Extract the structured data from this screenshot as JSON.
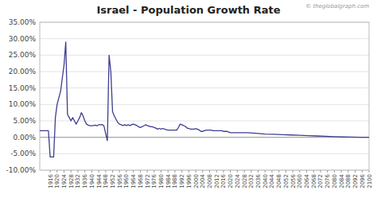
{
  "chart_data": {
    "type": "line",
    "title": "Israel - Population Growth Rate",
    "annotations": [
      "© theglobalgraph.com"
    ],
    "color": "#3d3d8f",
    "grid": true,
    "xlim": [
      1910,
      2100
    ],
    "xticks": [
      1916,
      1920,
      1924,
      1928,
      1932,
      1936,
      1940,
      1944,
      1948,
      1952,
      1956,
      1960,
      1964,
      1968,
      1972,
      1976,
      1980,
      1984,
      1988,
      1992,
      1996,
      2000,
      2004,
      2008,
      2012,
      2016,
      2020,
      2024,
      2028,
      2032,
      2036,
      2040,
      2044,
      2048,
      2052,
      2056,
      2060,
      2064,
      2068,
      2072,
      2076,
      2080,
      2084,
      2088,
      2092,
      2096,
      2100
    ],
    "ylim": [
      -0.1,
      0.35
    ],
    "yticks": [
      {
        "value": -0.1,
        "label": "-10.00%"
      },
      {
        "value": -0.05,
        "label": "-5.00%"
      },
      {
        "value": 0.0,
        "label": "0.00%"
      },
      {
        "value": 0.05,
        "label": "5.00%"
      },
      {
        "value": 0.1,
        "label": "10.00%"
      },
      {
        "value": 0.15,
        "label": "15.00%"
      },
      {
        "value": 0.2,
        "label": "20.00%"
      },
      {
        "value": 0.25,
        "label": "25.00%"
      },
      {
        "value": 0.3,
        "label": "30.00%"
      },
      {
        "value": 0.35,
        "label": "35.00%"
      }
    ],
    "x": [
      1910,
      1911,
      1912,
      1913,
      1914,
      1915,
      1916,
      1917,
      1918,
      1919,
      1920,
      1921,
      1922,
      1923,
      1924,
      1925,
      1926,
      1927,
      1928,
      1929,
      1930,
      1931,
      1932,
      1933,
      1934,
      1935,
      1936,
      1937,
      1938,
      1939,
      1940,
      1941,
      1942,
      1943,
      1944,
      1945,
      1946,
      1947,
      1948,
      1949,
      1950,
      1951,
      1952,
      1953,
      1954,
      1955,
      1956,
      1957,
      1958,
      1959,
      1960,
      1961,
      1962,
      1963,
      1964,
      1965,
      1966,
      1967,
      1968,
      1969,
      1970,
      1971,
      1972,
      1973,
      1974,
      1975,
      1976,
      1977,
      1978,
      1979,
      1980,
      1981,
      1982,
      1983,
      1984,
      1985,
      1986,
      1987,
      1988,
      1989,
      1990,
      1991,
      1992,
      1993,
      1994,
      1995,
      1996,
      1997,
      1998,
      1999,
      2000,
      2001,
      2002,
      2003,
      2004,
      2005,
      2006,
      2007,
      2008,
      2009,
      2010,
      2011,
      2012,
      2013,
      2014,
      2015,
      2016,
      2017,
      2018,
      2019,
      2020,
      2021,
      2022,
      2023,
      2024,
      2025,
      2030,
      2035,
      2040,
      2045,
      2050,
      2055,
      2060,
      2065,
      2070,
      2075,
      2080,
      2085,
      2090,
      2095,
      2100
    ],
    "values": [
      0.02,
      0.02,
      0.02,
      0.02,
      0.02,
      0.02,
      -0.06,
      -0.06,
      -0.06,
      0.06,
      0.1,
      0.12,
      0.14,
      0.18,
      0.22,
      0.29,
      0.07,
      0.06,
      0.05,
      0.06,
      0.05,
      0.04,
      0.05,
      0.06,
      0.075,
      0.065,
      0.05,
      0.04,
      0.037,
      0.035,
      0.035,
      0.036,
      0.037,
      0.035,
      0.038,
      0.038,
      0.039,
      0.035,
      0.012,
      -0.01,
      0.25,
      0.2,
      0.078,
      0.065,
      0.055,
      0.045,
      0.04,
      0.038,
      0.036,
      0.038,
      0.036,
      0.038,
      0.036,
      0.038,
      0.04,
      0.038,
      0.036,
      0.032,
      0.03,
      0.032,
      0.035,
      0.038,
      0.036,
      0.034,
      0.032,
      0.032,
      0.03,
      0.028,
      0.025,
      0.027,
      0.025,
      0.027,
      0.025,
      0.023,
      0.022,
      0.022,
      0.022,
      0.022,
      0.022,
      0.022,
      0.03,
      0.04,
      0.038,
      0.036,
      0.033,
      0.028,
      0.027,
      0.025,
      0.025,
      0.025,
      0.026,
      0.025,
      0.022,
      0.018,
      0.018,
      0.02,
      0.022,
      0.022,
      0.022,
      0.022,
      0.02,
      0.02,
      0.02,
      0.02,
      0.02,
      0.02,
      0.018,
      0.018,
      0.018,
      0.016,
      0.014,
      0.014,
      0.014,
      0.014,
      0.014,
      0.014,
      0.014,
      0.012,
      0.01,
      0.009,
      0.008,
      0.007,
      0.006,
      0.005,
      0.004,
      0.003,
      0.002,
      0.001,
      0.0005,
      0.0002,
      0.0001
    ]
  }
}
